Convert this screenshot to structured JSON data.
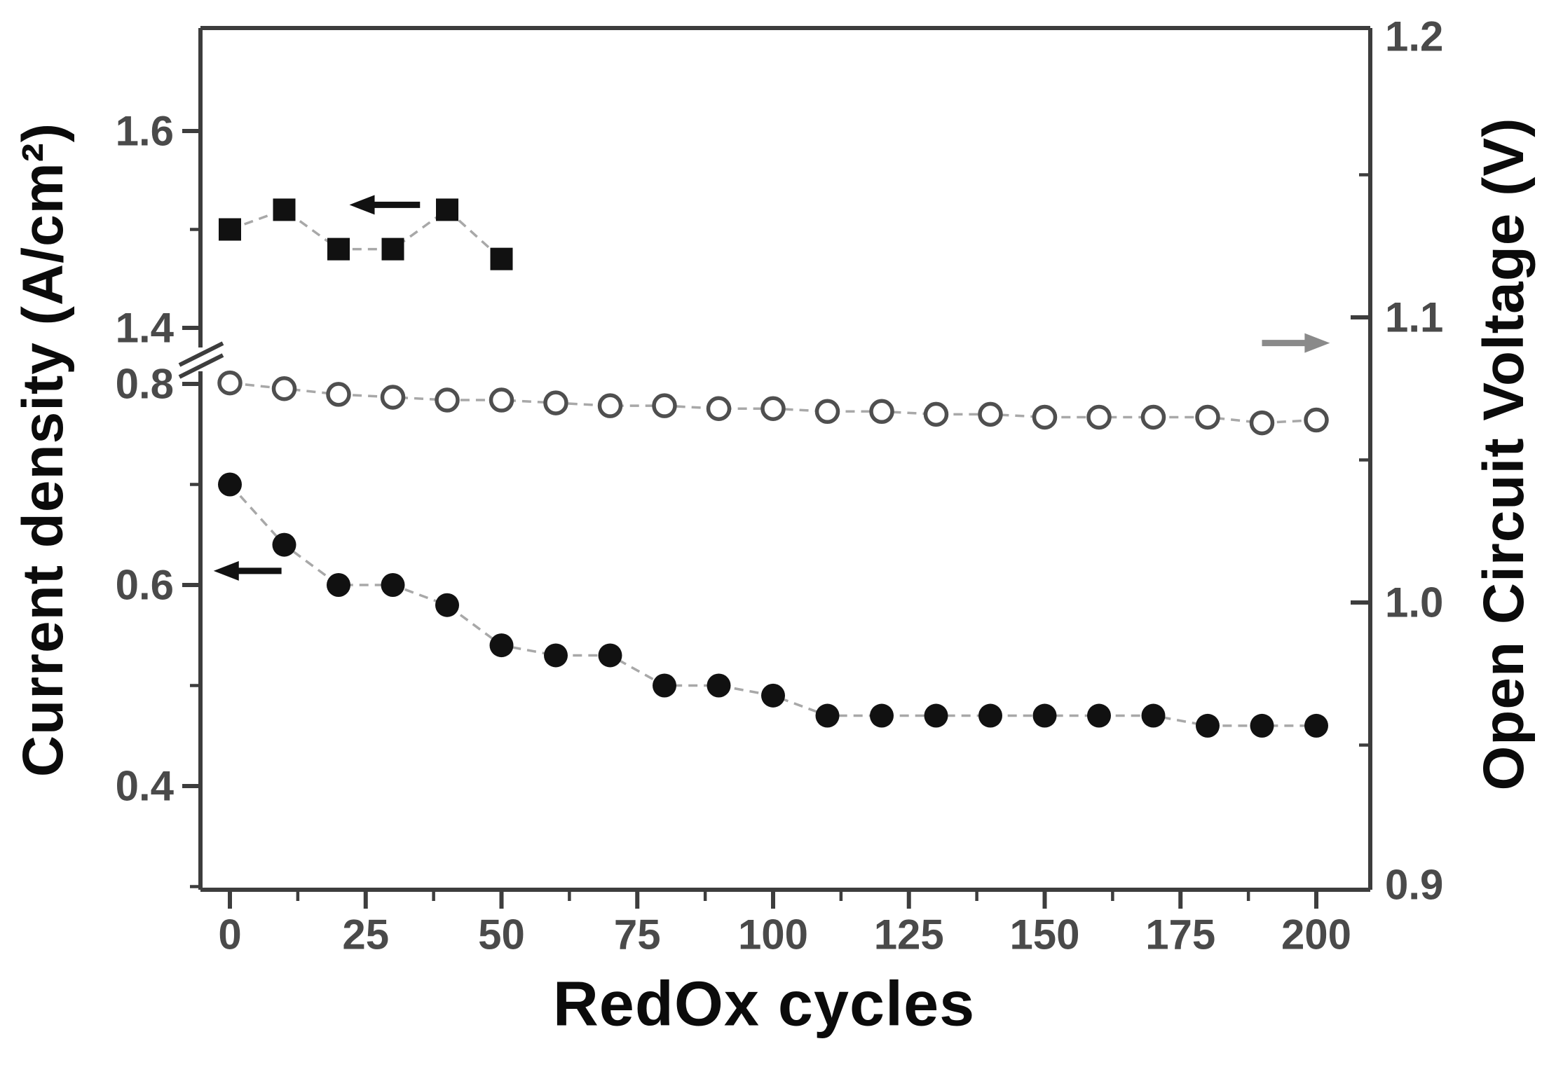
{
  "figure_title": "",
  "axes": {
    "left": {
      "label": "Current density (A/cm²)",
      "upper_tick_labels": [
        "1.6",
        "1.4"
      ],
      "lower_tick_labels": [
        "0.8",
        "0.6",
        "0.4"
      ],
      "has_axis_break": true
    },
    "right": {
      "label": "Open Circuit Voltage (V)",
      "tick_labels": [
        "1.2",
        "1.1",
        "1.0",
        "0.9"
      ]
    },
    "x": {
      "label": "RedOx cycles",
      "tick_labels": [
        "0",
        "25",
        "50",
        "75",
        "100",
        "125",
        "150",
        "175",
        "200"
      ]
    }
  },
  "chart_data": {
    "type": "scatter",
    "title": "",
    "xlabel": "RedOx cycles",
    "ylabel_left": "Current density (A/cm²)",
    "ylabel_right": "Open Circuit Voltage (V)",
    "grid": false,
    "legend": "none",
    "x_range": [
      -6,
      210
    ],
    "x_major_ticks": [
      0,
      25,
      50,
      75,
      100,
      125,
      150,
      175,
      200
    ],
    "x_minor_ticks": [
      12.5,
      37.5,
      62.5,
      87.5,
      112.5,
      137.5,
      162.5,
      187.5
    ],
    "left_axis": {
      "upper_segment": {
        "range": [
          1.395,
          1.705
        ],
        "major_ticks": [
          1.6,
          1.4
        ],
        "minor_ticks": [
          1.5
        ]
      },
      "lower_segment": {
        "range": [
          0.297,
          0.805
        ],
        "major_ticks": [
          0.8,
          0.6,
          0.4
        ],
        "minor_ticks": [
          0.7,
          0.5,
          0.3
        ]
      },
      "break_between": [
        0.805,
        1.395
      ]
    },
    "right_axis": {
      "range": [
        0.9,
        1.2
      ],
      "major_ticks": [
        1.1,
        1.0
      ],
      "minor_ticks": [
        1.15,
        1.05,
        0.95
      ]
    },
    "series": [
      {
        "name": "current-density-upper-branch",
        "axis": "left-upper",
        "marker": "filled-square",
        "color": "#111111",
        "line_color": "#a8a8a8",
        "x": [
          0,
          10,
          20,
          30,
          40,
          50
        ],
        "y": [
          1.5,
          1.52,
          1.48,
          1.48,
          1.52,
          1.47
        ]
      },
      {
        "name": "open-circuit-voltage",
        "axis": "right",
        "marker": "open-circle",
        "color": "#4f4f4f",
        "line_color": "#a8a8a8",
        "x": [
          0,
          10,
          20,
          30,
          40,
          50,
          60,
          70,
          80,
          90,
          100,
          110,
          120,
          130,
          140,
          150,
          160,
          170,
          180,
          190,
          200
        ],
        "y": [
          1.077,
          1.075,
          1.073,
          1.072,
          1.071,
          1.071,
          1.07,
          1.069,
          1.069,
          1.068,
          1.068,
          1.067,
          1.067,
          1.066,
          1.066,
          1.065,
          1.065,
          1.065,
          1.065,
          1.063,
          1.064
        ]
      },
      {
        "name": "current-density",
        "axis": "left-lower",
        "marker": "filled-circle",
        "color": "#111111",
        "line_color": "#a8a8a8",
        "x": [
          0,
          10,
          20,
          30,
          40,
          50,
          60,
          70,
          80,
          90,
          100,
          110,
          120,
          130,
          140,
          150,
          160,
          170,
          180,
          190,
          200
        ],
        "y": [
          0.7,
          0.64,
          0.6,
          0.6,
          0.58,
          0.54,
          0.53,
          0.53,
          0.5,
          0.5,
          0.49,
          0.47,
          0.47,
          0.47,
          0.47,
          0.47,
          0.47,
          0.47,
          0.46,
          0.46,
          0.46
        ]
      }
    ],
    "annotations": [
      {
        "type": "arrow",
        "direction": "left",
        "axis": "left-upper",
        "x_tail": 35,
        "x_head": 22,
        "y": 1.525,
        "color": "#111111",
        "meaning": "squares read on left axis"
      },
      {
        "type": "arrow",
        "direction": "left",
        "axis": "left-lower",
        "x_tail": 9.5,
        "x_head": -3,
        "y": 0.614,
        "color": "#111111",
        "meaning": "filled circles read on left axis"
      },
      {
        "type": "arrow",
        "direction": "right",
        "axis": "right",
        "x_tail": 190,
        "x_head": 202.5,
        "y": 1.091,
        "color": "#8a8a8a",
        "meaning": "open circles read on right axis"
      }
    ]
  },
  "colors": {
    "axis": "#3d3d3d",
    "tick_label": "#4a4a4a",
    "title": "#0b0b0b",
    "marker": "#111111",
    "connector": "#a8a8a8",
    "background": "#ffffff"
  }
}
